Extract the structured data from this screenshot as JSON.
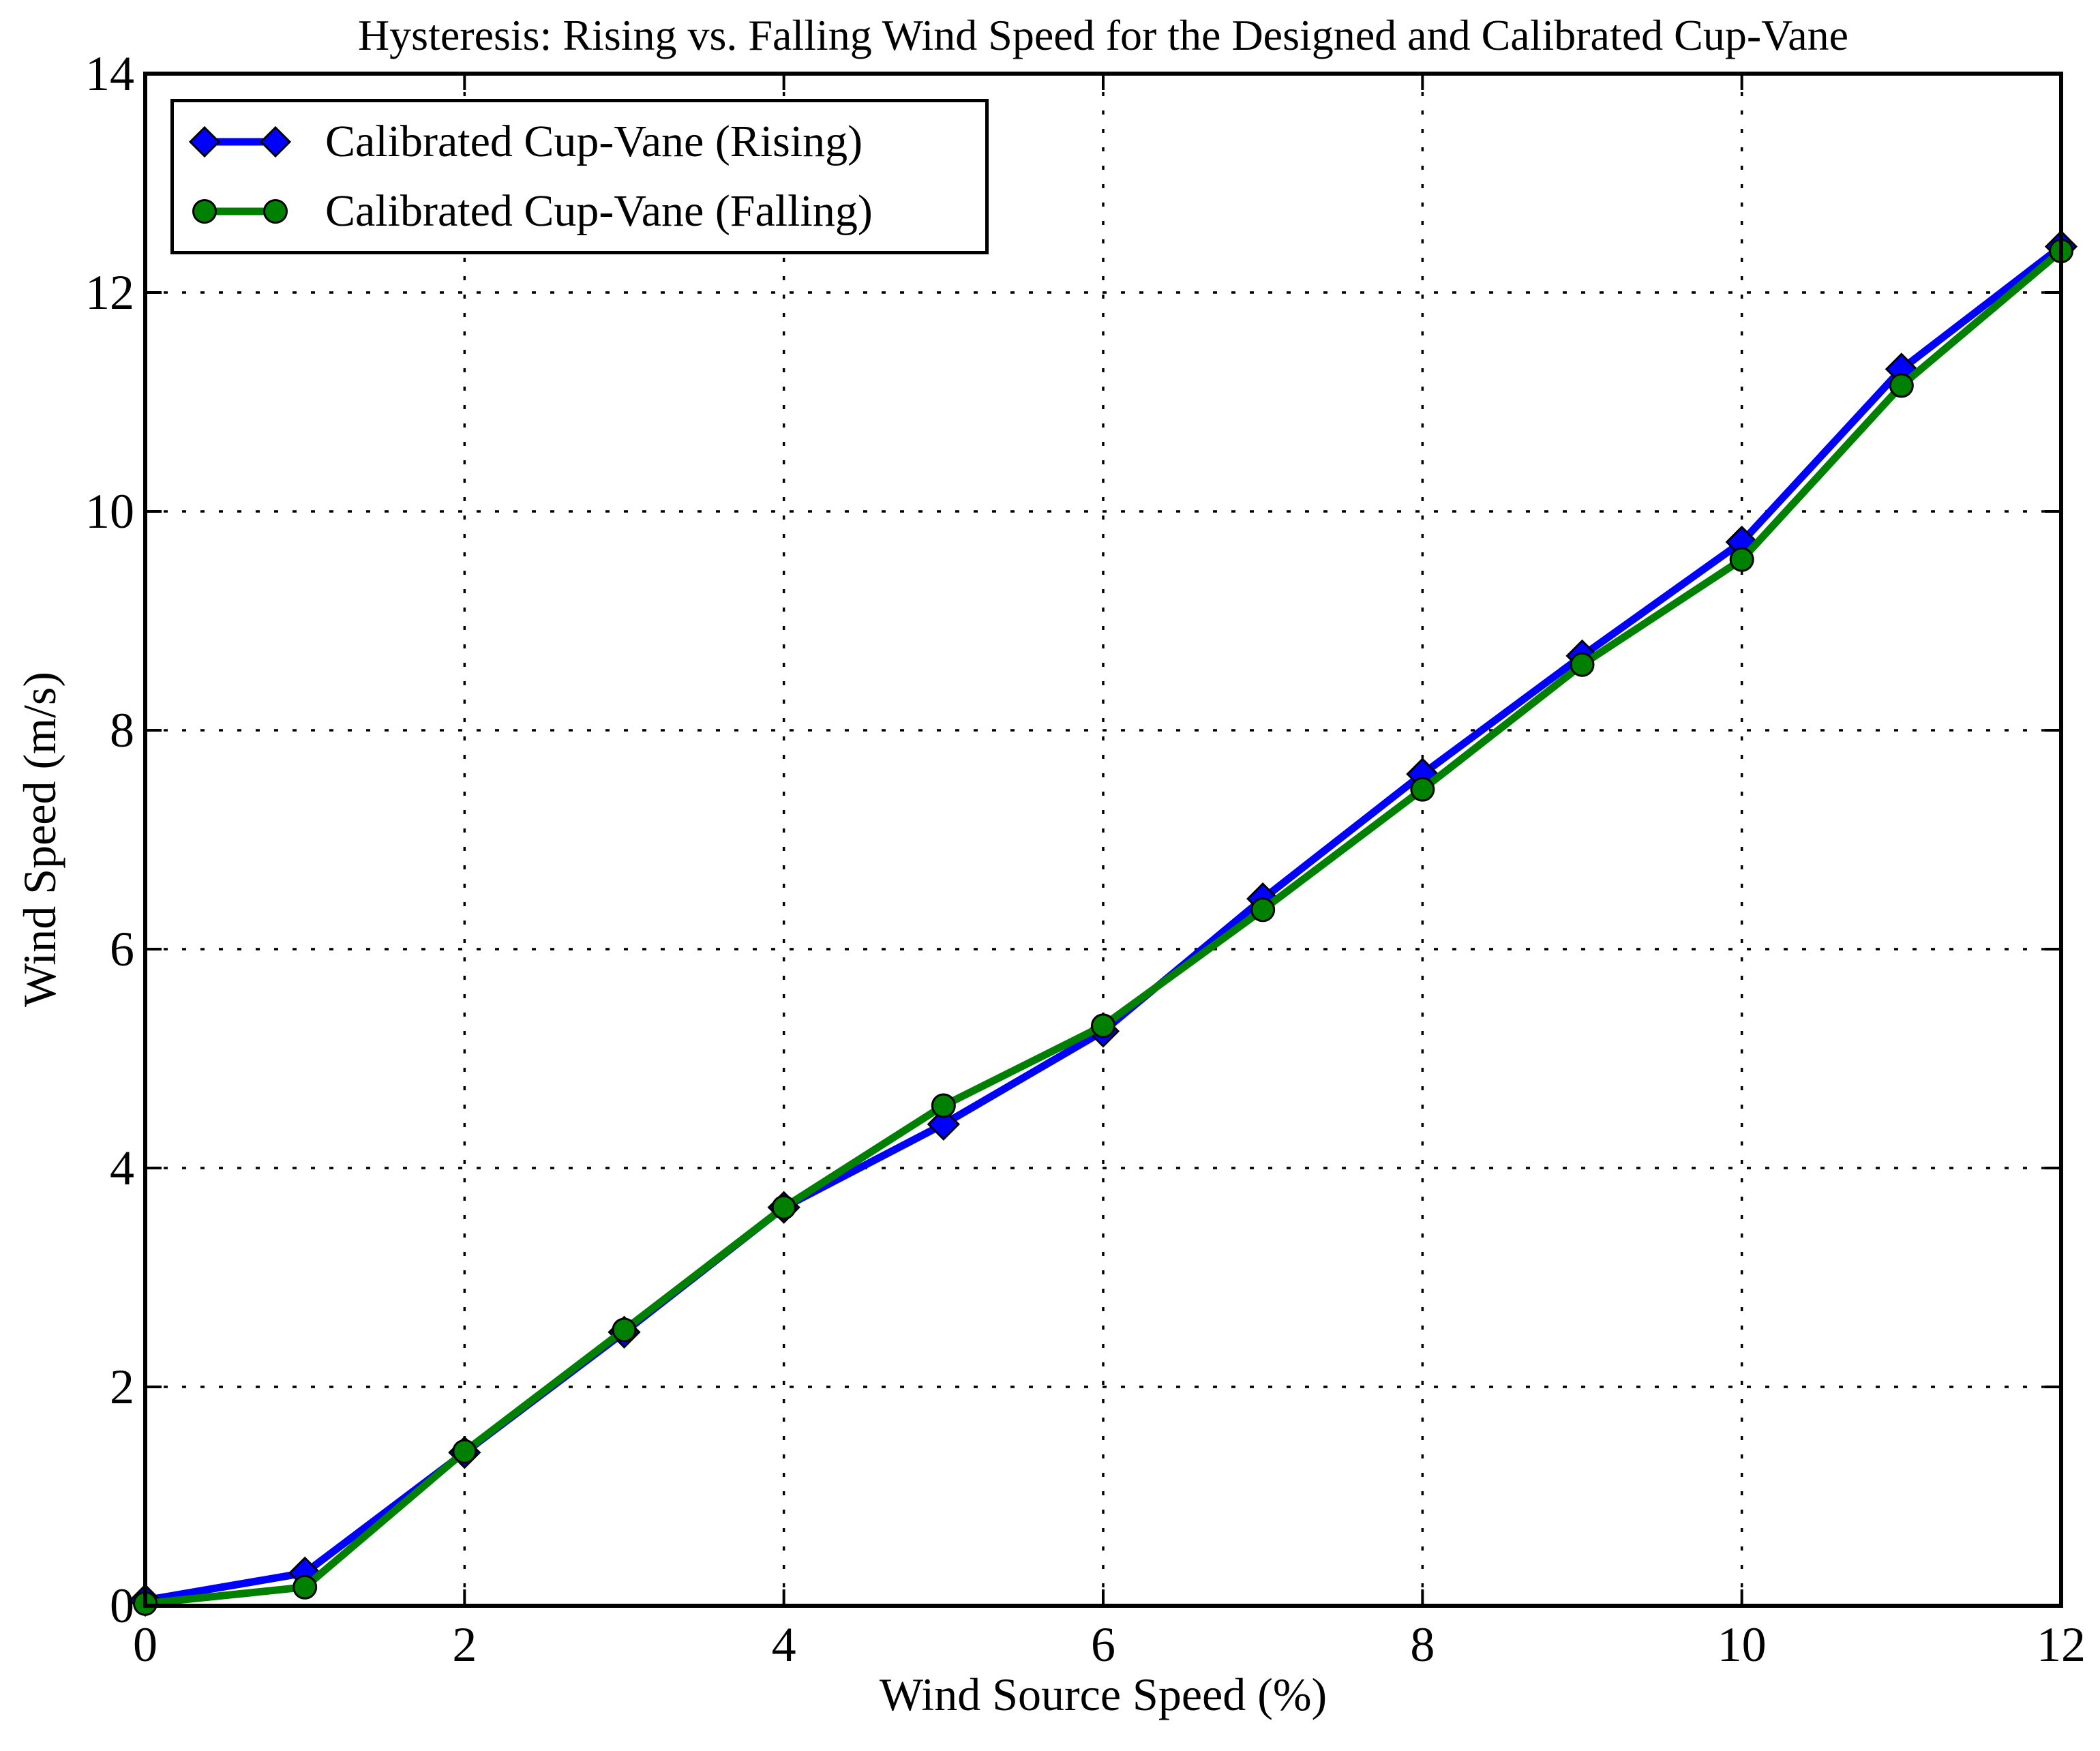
{
  "figure": {
    "background": "#ffffff",
    "text_color": "#000000"
  },
  "chart_data": {
    "type": "line",
    "title": "Hysteresis: Rising vs. Falling Wind Speed for the Designed and Calibrated Cup-Vane",
    "xlabel": "Wind Source Speed (%)",
    "ylabel": "Wind Speed (m/s)",
    "xlim": [
      0,
      12
    ],
    "ylim": [
      0,
      14
    ],
    "x_ticks": [
      0,
      2,
      4,
      6,
      8,
      10,
      12
    ],
    "y_ticks": [
      0,
      2,
      4,
      6,
      8,
      10,
      12,
      14
    ],
    "x_tick_labels": [
      "0",
      "2",
      "4",
      "6",
      "8",
      "10",
      "12"
    ],
    "y_tick_labels": [
      "0",
      "2",
      "4",
      "6",
      "8",
      "10",
      "12",
      "14"
    ],
    "grid": {
      "visible": true,
      "style": "dotted",
      "color": "#000000"
    },
    "legend": {
      "position": "upper-left",
      "border_color": "#000000",
      "background": "#ffffff"
    },
    "x": [
      0,
      1,
      2,
      3,
      4,
      5,
      6,
      7,
      8,
      9,
      10,
      11,
      12
    ],
    "series": [
      {
        "name": "Calibrated Cup-Vane (Rising)",
        "color": "#0000ff",
        "marker": "diamond",
        "values": [
          0.05,
          0.3,
          1.4,
          2.5,
          3.64,
          4.4,
          5.25,
          6.46,
          7.6,
          8.68,
          9.72,
          11.3,
          12.42
        ]
      },
      {
        "name": "Calibrated Cup-Vane (Falling)",
        "color": "#008000",
        "marker": "circle",
        "values": [
          0.02,
          0.17,
          1.41,
          2.52,
          3.64,
          4.57,
          5.3,
          6.36,
          7.46,
          8.6,
          9.56,
          11.15,
          12.38
        ]
      }
    ]
  }
}
